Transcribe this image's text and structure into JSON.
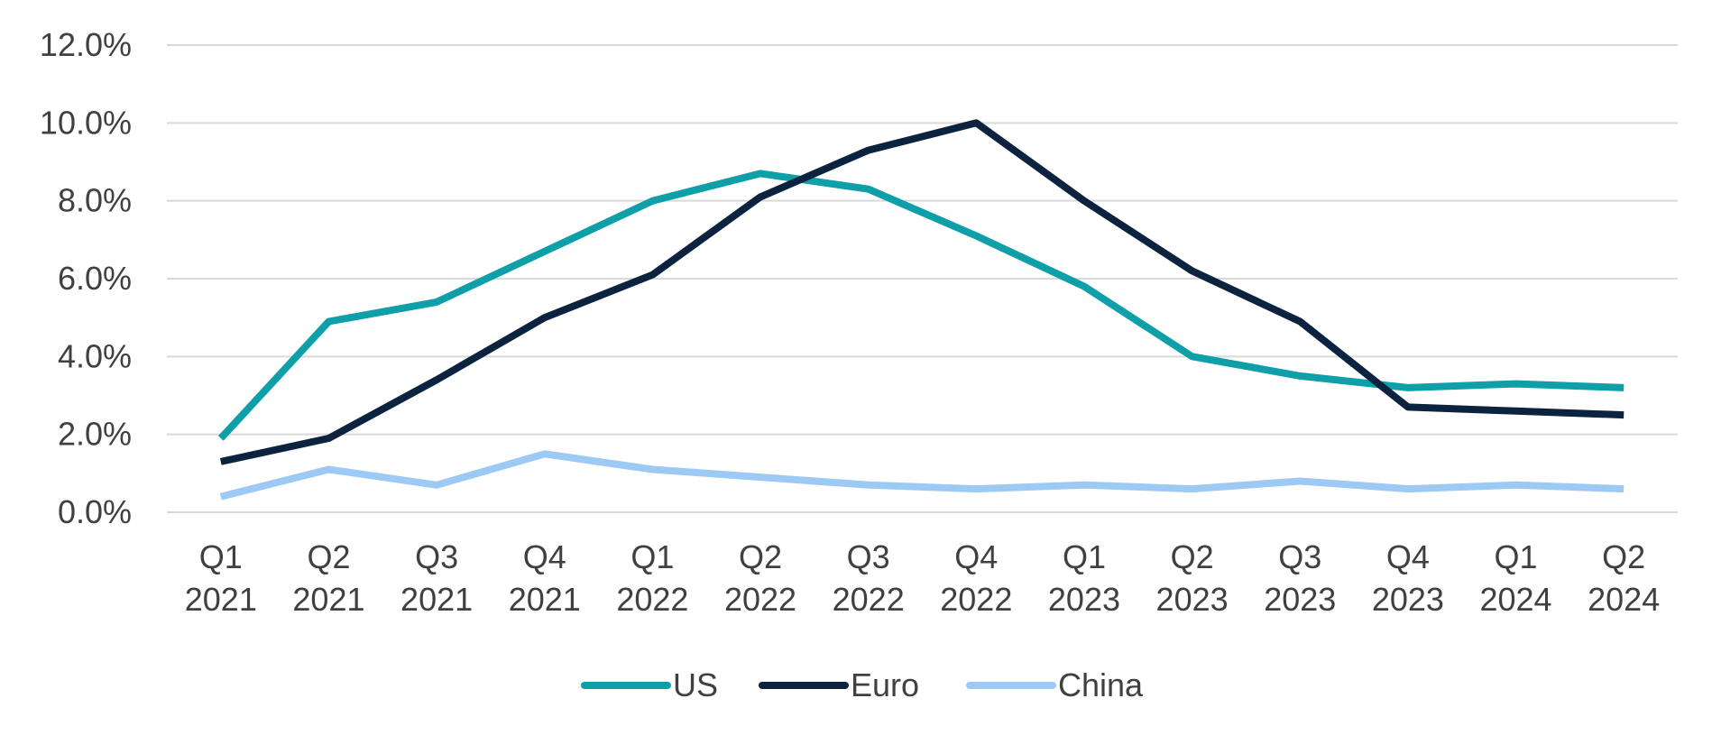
{
  "chart_data": {
    "type": "line",
    "title": "",
    "xlabel": "",
    "ylabel": "",
    "categories": [
      [
        "Q1",
        "2021"
      ],
      [
        "Q2",
        "2021"
      ],
      [
        "Q3",
        "2021"
      ],
      [
        "Q4",
        "2021"
      ],
      [
        "Q1",
        "2022"
      ],
      [
        "Q2",
        "2022"
      ],
      [
        "Q3",
        "2022"
      ],
      [
        "Q4",
        "2022"
      ],
      [
        "Q1",
        "2023"
      ],
      [
        "Q2",
        "2023"
      ],
      [
        "Q3",
        "2023"
      ],
      [
        "Q4",
        "2023"
      ],
      [
        "Q1",
        "2024"
      ],
      [
        "Q2",
        "2024"
      ]
    ],
    "ylim": [
      0,
      12
    ],
    "yticks": [
      0,
      2,
      4,
      6,
      8,
      10,
      12
    ],
    "ytick_labels": [
      "0.0%",
      "2.0%",
      "4.0%",
      "6.0%",
      "8.0%",
      "10.0%",
      "12.0%"
    ],
    "grid": true,
    "legend_position": "bottom-center",
    "series": [
      {
        "name": "US",
        "color": "#0e9fa8",
        "values": [
          1.9,
          4.9,
          5.4,
          6.7,
          8.0,
          8.7,
          8.3,
          7.1,
          5.8,
          4.0,
          3.5,
          3.2,
          3.3,
          3.2
        ]
      },
      {
        "name": "Euro",
        "color": "#0c2340",
        "values": [
          1.3,
          1.9,
          3.4,
          5.0,
          6.1,
          8.1,
          9.3,
          10.0,
          8.0,
          6.2,
          4.9,
          2.7,
          2.6,
          2.5
        ]
      },
      {
        "name": "China",
        "color": "#9dc9f5",
        "values": [
          0.4,
          1.1,
          0.7,
          1.5,
          1.1,
          0.9,
          0.7,
          0.6,
          0.7,
          0.6,
          0.8,
          0.6,
          0.7,
          0.6
        ]
      }
    ]
  }
}
